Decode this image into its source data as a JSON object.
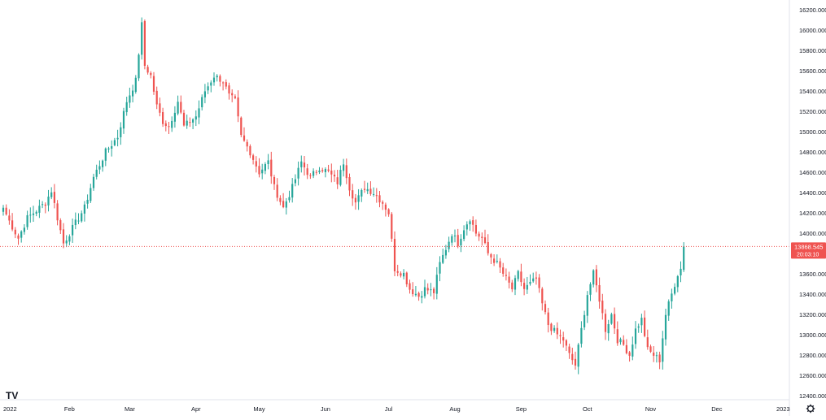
{
  "chart_data": {
    "type": "candlestick",
    "colors": {
      "up": "#26a69a",
      "down": "#ef5350",
      "price_line": "#ef5350",
      "axis_text": "#131722",
      "border": "#e0e3eb"
    },
    "y_axis": {
      "ylim": [
        12400,
        16200
      ],
      "ticks": [
        12400,
        12600,
        12800,
        13000,
        13200,
        13400,
        13600,
        13800,
        14000,
        14200,
        14400,
        14600,
        14800,
        15000,
        15200,
        15400,
        15600,
        15800,
        16000,
        16200
      ],
      "tick_labels": [
        "12400.000",
        "12600.000",
        "12800.000",
        "13000.000",
        "13200.000",
        "13400.000",
        "13600.000",
        "13800.000",
        "14000.000",
        "14200.000",
        "14400.000",
        "14600.000",
        "14800.000",
        "15000.000",
        "15200.000",
        "15400.000",
        "15600.000",
        "15800.000",
        "16000.000",
        "16200.000"
      ]
    },
    "x_axis": {
      "labels": [
        "2022",
        "Feb",
        "Mar",
        "Apr",
        "May",
        "Jun",
        "Jul",
        "Aug",
        "Sep",
        "Oct",
        "Nov",
        "Dec",
        "2023"
      ],
      "label_index": [
        0,
        22,
        42,
        64,
        85,
        107,
        128,
        150,
        172,
        194,
        215,
        237,
        259
      ]
    },
    "last_price": {
      "value": 13868.545,
      "label": "13868.545",
      "countdown": "20:03:10"
    },
    "watermark": "TV",
    "anchors": [
      [
        0,
        14250
      ],
      [
        2,
        14120
      ],
      [
        5,
        13950
      ],
      [
        8,
        14150
      ],
      [
        10,
        14200
      ],
      [
        14,
        14300
      ],
      [
        16,
        14420
      ],
      [
        18,
        14150
      ],
      [
        20,
        13900
      ],
      [
        23,
        14050
      ],
      [
        27,
        14250
      ],
      [
        30,
        14550
      ],
      [
        34,
        14800
      ],
      [
        38,
        14950
      ],
      [
        41,
        15300
      ],
      [
        44,
        15500
      ],
      [
        46,
        16050
      ],
      [
        47,
        15650
      ],
      [
        49,
        15550
      ],
      [
        51,
        15250
      ],
      [
        53,
        15100
      ],
      [
        55,
        15050
      ],
      [
        58,
        15300
      ],
      [
        60,
        15050
      ],
      [
        64,
        15150
      ],
      [
        67,
        15400
      ],
      [
        70,
        15550
      ],
      [
        73,
        15500
      ],
      [
        75,
        15350
      ],
      [
        77,
        15300
      ],
      [
        79,
        14950
      ],
      [
        82,
        14800
      ],
      [
        85,
        14600
      ],
      [
        88,
        14700
      ],
      [
        90,
        14450
      ],
      [
        93,
        14250
      ],
      [
        96,
        14450
      ],
      [
        99,
        14700
      ],
      [
        102,
        14550
      ],
      [
        105,
        14650
      ],
      [
        108,
        14600
      ],
      [
        111,
        14500
      ],
      [
        113,
        14700
      ],
      [
        115,
        14450
      ],
      [
        117,
        14300
      ],
      [
        120,
        14450
      ],
      [
        123,
        14400
      ],
      [
        126,
        14300
      ],
      [
        128,
        14200
      ],
      [
        130,
        13650
      ],
      [
        133,
        13600
      ],
      [
        135,
        13450
      ],
      [
        138,
        13380
      ],
      [
        140,
        13450
      ],
      [
        143,
        13420
      ],
      [
        145,
        13700
      ],
      [
        147,
        13850
      ],
      [
        149,
        14000
      ],
      [
        151,
        13900
      ],
      [
        153,
        14050
      ],
      [
        155,
        14150
      ],
      [
        157,
        14000
      ],
      [
        159,
        13950
      ],
      [
        161,
        13800
      ],
      [
        164,
        13700
      ],
      [
        167,
        13550
      ],
      [
        169,
        13450
      ],
      [
        171,
        13600
      ],
      [
        173,
        13450
      ],
      [
        175,
        13500
      ],
      [
        177,
        13550
      ],
      [
        179,
        13300
      ],
      [
        181,
        13100
      ],
      [
        184,
        13000
      ],
      [
        186,
        12950
      ],
      [
        188,
        12800
      ],
      [
        190,
        12700
      ],
      [
        192,
        13050
      ],
      [
        194,
        13400
      ],
      [
        196,
        13600
      ],
      [
        198,
        13350
      ],
      [
        200,
        13050
      ],
      [
        202,
        13200
      ],
      [
        204,
        12950
      ],
      [
        206,
        12900
      ],
      [
        208,
        12800
      ],
      [
        210,
        13050
      ],
      [
        212,
        13150
      ],
      [
        214,
        12850
      ],
      [
        216,
        12800
      ],
      [
        218,
        12750
      ],
      [
        220,
        13200
      ],
      [
        222,
        13400
      ],
      [
        224,
        13600
      ],
      [
        225,
        13650
      ],
      [
        226,
        13868.545
      ]
    ]
  }
}
